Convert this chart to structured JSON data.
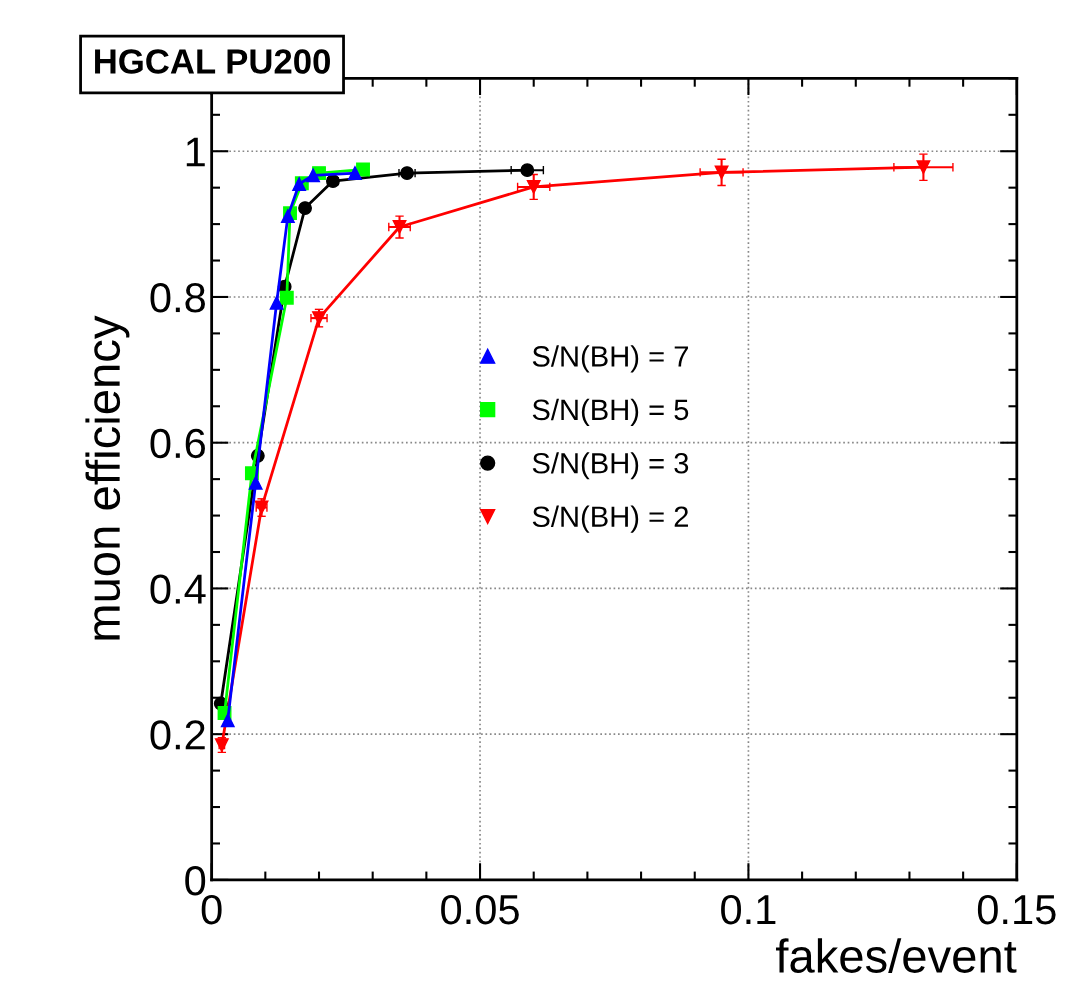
{
  "chart_data": {
    "type": "line",
    "title": "HGCAL PU200",
    "xlabel": "fakes/event",
    "ylabel": "muon efficiency",
    "xlim": [
      0,
      0.15
    ],
    "ylim": [
      0,
      1.1
    ],
    "xticks": [
      0,
      0.05,
      0.1,
      0.15
    ],
    "yticks": [
      0,
      0.2,
      0.4,
      0.6,
      0.8,
      1
    ],
    "grid": true,
    "legend": "center",
    "line_style": "solid",
    "series": [
      {
        "name": "S/N(BH) = 7",
        "color": "#0000ff",
        "marker": "triangle",
        "x": [
          0.003,
          0.0082,
          0.0121,
          0.0142,
          0.0163,
          0.0189,
          0.0267
        ],
        "values": [
          0.219,
          0.545,
          0.792,
          0.911,
          0.955,
          0.967,
          0.97
        ]
      },
      {
        "name": "S/N(BH) = 5",
        "color": "#00ff00",
        "marker": "square",
        "x": [
          0.0024,
          0.0075,
          0.014,
          0.0146,
          0.0168,
          0.02,
          0.0282
        ],
        "values": [
          0.229,
          0.558,
          0.799,
          0.915,
          0.956,
          0.97,
          0.975
        ]
      },
      {
        "name": "S/N(BH) = 3",
        "color": "#000000",
        "marker": "circle",
        "x": [
          0.0017,
          0.0086,
          0.0136,
          0.0174,
          0.0226,
          0.0364,
          0.0588
        ],
        "values": [
          0.242,
          0.582,
          0.814,
          0.922,
          0.959,
          0.97,
          0.974
        ],
        "xerrors": [
          null,
          null,
          null,
          0.0005,
          0.001,
          0.0015,
          0.003
        ]
      },
      {
        "name": "S/N(BH) = 2",
        "color": "#ff0000",
        "marker": "triangle_down",
        "x": [
          0.0019,
          0.0093,
          0.02,
          0.035,
          0.06,
          0.095,
          0.1326
        ],
        "values": [
          0.185,
          0.511,
          0.771,
          0.896,
          0.951,
          0.971,
          0.978
        ],
        "errors": [
          0.01,
          0.012,
          0.012,
          0.015,
          0.017,
          0.018,
          0.018
        ],
        "xerrors": [
          0.0005,
          0.001,
          0.0015,
          0.002,
          0.003,
          0.004,
          0.0055
        ]
      }
    ]
  }
}
